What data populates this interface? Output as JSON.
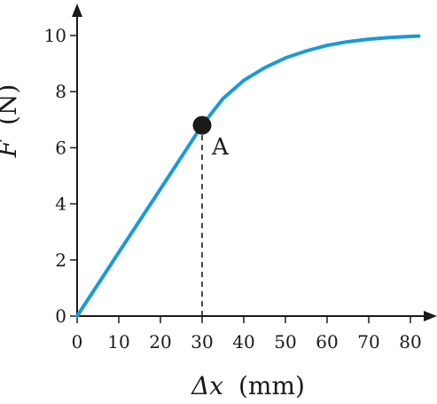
{
  "chart_data": {
    "type": "line",
    "title": "",
    "xlabel": {
      "symbol": "Δx",
      "unit": "(mm)"
    },
    "ylabel": {
      "symbol": "F",
      "unit": "(N)"
    },
    "xlim": [
      0,
      82
    ],
    "ylim": [
      0,
      10.5
    ],
    "x_ticks": [
      0,
      10,
      20,
      30,
      40,
      50,
      60,
      70,
      80
    ],
    "y_ticks": [
      0,
      2,
      4,
      6,
      8,
      10
    ],
    "grid": false,
    "series": [
      {
        "color": "#1b9ad6",
        "points": [
          [
            0,
            0
          ],
          [
            10,
            2.27
          ],
          [
            20,
            4.53
          ],
          [
            30,
            6.8
          ],
          [
            35,
            7.75
          ],
          [
            40,
            8.4
          ],
          [
            45,
            8.85
          ],
          [
            50,
            9.2
          ],
          [
            55,
            9.45
          ],
          [
            60,
            9.65
          ],
          [
            65,
            9.78
          ],
          [
            70,
            9.87
          ],
          [
            75,
            9.93
          ],
          [
            80,
            9.97
          ],
          [
            82,
            9.98
          ]
        ]
      }
    ],
    "annotations": [
      {
        "label": "A",
        "x": 30,
        "y": 6.8,
        "marker": "filled-circle",
        "dashed_drop_line": true
      }
    ]
  }
}
